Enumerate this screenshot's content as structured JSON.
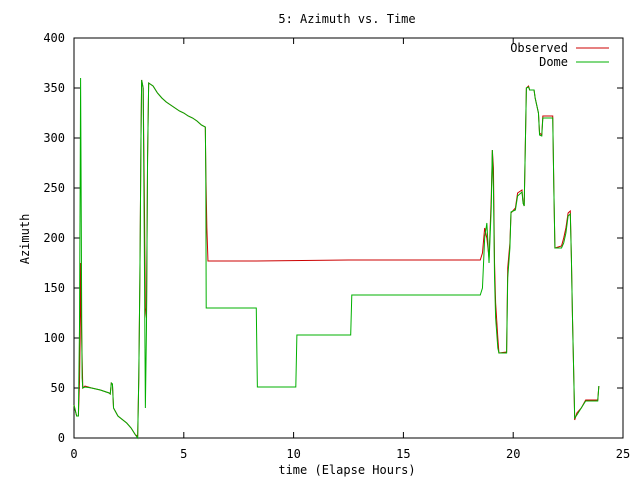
{
  "chart_data": {
    "type": "line",
    "title": "5: Azimuth vs. Time",
    "xlabel": "time (Elapse Hours)",
    "ylabel": "Azimuth",
    "xlim": [
      0,
      25
    ],
    "ylim": [
      0,
      400
    ],
    "xticks": [
      "0",
      "5",
      "10",
      "15",
      "20",
      "25"
    ],
    "yticks": [
      "0",
      "50",
      "100",
      "150",
      "200",
      "250",
      "300",
      "350",
      "400"
    ],
    "legend_position": "top-right",
    "grid": false,
    "series": [
      {
        "name": "Observed",
        "color": "#cc0000",
        "points": [
          [
            0.0,
            33
          ],
          [
            0.12,
            22
          ],
          [
            0.2,
            22
          ],
          [
            0.25,
            55
          ],
          [
            0.28,
            100
          ],
          [
            0.3,
            175
          ],
          [
            0.32,
            135
          ],
          [
            0.35,
            100
          ],
          [
            0.37,
            80
          ],
          [
            0.4,
            50
          ],
          [
            0.5,
            52
          ],
          [
            0.8,
            50
          ],
          [
            1.2,
            48
          ],
          [
            1.6,
            45
          ],
          [
            1.65,
            44
          ],
          [
            1.7,
            55
          ],
          [
            1.75,
            54
          ],
          [
            1.8,
            30
          ],
          [
            2.0,
            22
          ],
          [
            2.4,
            15
          ],
          [
            2.6,
            10
          ],
          [
            2.8,
            3
          ],
          [
            2.9,
            2
          ],
          [
            2.95,
            60
          ],
          [
            3.0,
            160
          ],
          [
            3.05,
            300
          ],
          [
            3.08,
            358
          ],
          [
            3.15,
            350
          ],
          [
            3.2,
            250
          ],
          [
            3.25,
            130
          ],
          [
            3.3,
            120
          ],
          [
            3.35,
            280
          ],
          [
            3.4,
            355
          ],
          [
            3.6,
            352
          ],
          [
            3.8,
            345
          ],
          [
            4.0,
            340
          ],
          [
            4.2,
            336
          ],
          [
            4.4,
            333
          ],
          [
            4.6,
            330
          ],
          [
            4.8,
            327
          ],
          [
            5.0,
            325
          ],
          [
            5.2,
            322
          ],
          [
            5.4,
            320
          ],
          [
            5.6,
            317
          ],
          [
            5.8,
            313
          ],
          [
            5.98,
            311
          ],
          [
            6.0,
            270
          ],
          [
            6.05,
            210
          ],
          [
            6.1,
            177
          ],
          [
            8.3,
            177
          ],
          [
            12.5,
            178
          ],
          [
            18.5,
            178
          ],
          [
            18.6,
            185
          ],
          [
            18.7,
            210
          ],
          [
            18.8,
            200
          ],
          [
            18.9,
            180
          ],
          [
            19.0,
            240
          ],
          [
            19.05,
            288
          ],
          [
            19.1,
            270
          ],
          [
            19.15,
            175
          ],
          [
            19.2,
            135
          ],
          [
            19.3,
            100
          ],
          [
            19.35,
            85
          ],
          [
            19.7,
            86
          ],
          [
            19.75,
            170
          ],
          [
            19.85,
            195
          ],
          [
            19.9,
            225
          ],
          [
            20.1,
            230
          ],
          [
            20.2,
            245
          ],
          [
            20.4,
            248
          ],
          [
            20.45,
            235
          ],
          [
            20.5,
            232
          ],
          [
            20.55,
            290
          ],
          [
            20.6,
            350
          ],
          [
            20.7,
            352
          ],
          [
            20.75,
            348
          ],
          [
            20.95,
            348
          ],
          [
            21.0,
            340
          ],
          [
            21.15,
            325
          ],
          [
            21.2,
            305
          ],
          [
            21.3,
            303
          ],
          [
            21.35,
            322
          ],
          [
            21.8,
            322
          ],
          [
            21.85,
            250
          ],
          [
            21.9,
            190
          ],
          [
            22.2,
            192
          ],
          [
            22.3,
            200
          ],
          [
            22.4,
            210
          ],
          [
            22.5,
            225
          ],
          [
            22.6,
            227
          ],
          [
            22.65,
            180
          ],
          [
            22.7,
            120
          ],
          [
            22.75,
            70
          ],
          [
            22.8,
            18
          ],
          [
            22.9,
            25
          ],
          [
            23.1,
            30
          ],
          [
            23.3,
            38
          ],
          [
            23.85,
            38
          ],
          [
            23.9,
            52
          ]
        ]
      },
      {
        "name": "Dome",
        "color": "#00b000",
        "points": [
          [
            0.0,
            33
          ],
          [
            0.12,
            22
          ],
          [
            0.2,
            22
          ],
          [
            0.25,
            110
          ],
          [
            0.28,
            250
          ],
          [
            0.3,
            360
          ],
          [
            0.32,
            270
          ],
          [
            0.35,
            120
          ],
          [
            0.37,
            60
          ],
          [
            0.4,
            50
          ],
          [
            0.5,
            51
          ],
          [
            0.8,
            50
          ],
          [
            1.2,
            48
          ],
          [
            1.6,
            45
          ],
          [
            1.65,
            44
          ],
          [
            1.7,
            55
          ],
          [
            1.75,
            54
          ],
          [
            1.8,
            30
          ],
          [
            2.0,
            22
          ],
          [
            2.4,
            15
          ],
          [
            2.6,
            10
          ],
          [
            2.8,
            3
          ],
          [
            2.9,
            0
          ],
          [
            2.95,
            60
          ],
          [
            3.0,
            160
          ],
          [
            3.05,
            300
          ],
          [
            3.08,
            358
          ],
          [
            3.15,
            350
          ],
          [
            3.2,
            200
          ],
          [
            3.25,
            30
          ],
          [
            3.3,
            110
          ],
          [
            3.35,
            280
          ],
          [
            3.4,
            355
          ],
          [
            3.6,
            352
          ],
          [
            3.8,
            345
          ],
          [
            4.0,
            340
          ],
          [
            4.2,
            336
          ],
          [
            4.4,
            333
          ],
          [
            4.6,
            330
          ],
          [
            4.8,
            327
          ],
          [
            5.0,
            325
          ],
          [
            5.2,
            322
          ],
          [
            5.4,
            320
          ],
          [
            5.6,
            317
          ],
          [
            5.8,
            313
          ],
          [
            5.98,
            311
          ],
          [
            6.0,
            270
          ],
          [
            6.02,
            130
          ],
          [
            8.3,
            130
          ],
          [
            8.35,
            51
          ],
          [
            10.1,
            51
          ],
          [
            10.15,
            103
          ],
          [
            12.6,
            103
          ],
          [
            12.65,
            143
          ],
          [
            18.5,
            143
          ],
          [
            18.6,
            150
          ],
          [
            18.7,
            200
          ],
          [
            18.8,
            215
          ],
          [
            18.9,
            175
          ],
          [
            19.0,
            230
          ],
          [
            19.05,
            288
          ],
          [
            19.1,
            250
          ],
          [
            19.15,
            160
          ],
          [
            19.2,
            120
          ],
          [
            19.3,
            90
          ],
          [
            19.35,
            85
          ],
          [
            19.7,
            85
          ],
          [
            19.75,
            160
          ],
          [
            19.85,
            190
          ],
          [
            19.9,
            226
          ],
          [
            20.1,
            228
          ],
          [
            20.2,
            242
          ],
          [
            20.4,
            246
          ],
          [
            20.45,
            235
          ],
          [
            20.5,
            232
          ],
          [
            20.55,
            290
          ],
          [
            20.6,
            350
          ],
          [
            20.7,
            351
          ],
          [
            20.75,
            348
          ],
          [
            20.95,
            348
          ],
          [
            21.0,
            340
          ],
          [
            21.15,
            325
          ],
          [
            21.2,
            303
          ],
          [
            21.3,
            302
          ],
          [
            21.35,
            320
          ],
          [
            21.8,
            320
          ],
          [
            21.85,
            250
          ],
          [
            21.9,
            190
          ],
          [
            22.2,
            190
          ],
          [
            22.3,
            195
          ],
          [
            22.4,
            205
          ],
          [
            22.5,
            222
          ],
          [
            22.6,
            224
          ],
          [
            22.65,
            180
          ],
          [
            22.7,
            120
          ],
          [
            22.75,
            70
          ],
          [
            22.8,
            20
          ],
          [
            22.9,
            23
          ],
          [
            23.1,
            30
          ],
          [
            23.3,
            37
          ],
          [
            23.85,
            37
          ],
          [
            23.9,
            52
          ]
        ]
      }
    ]
  }
}
